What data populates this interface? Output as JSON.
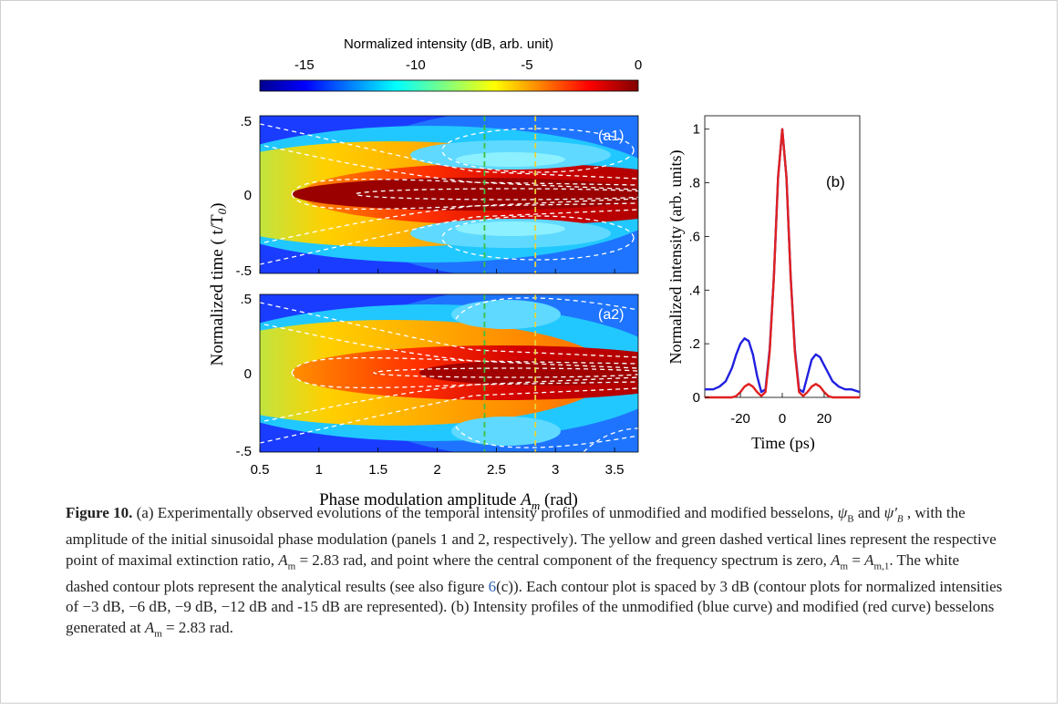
{
  "colorbar": {
    "title": "Normalized intensity (dB, arb. unit)",
    "ticks": [
      "-15",
      "-10",
      "-5",
      "0"
    ],
    "tick_values": [
      -15,
      -10,
      -5,
      0
    ],
    "range": [
      -17,
      0
    ]
  },
  "panel_a": {
    "ylabel": "Normalized time ( t/T",
    "ylabel_sub": "0",
    "ylabel_close": ")",
    "xlabel": "Phase modulation amplitude",
    "xlabel_var": "A",
    "xlabel_sub": "m",
    "xlabel_unit": "(rad)",
    "x_ticks": [
      "0.5",
      "1",
      "1.5",
      "2",
      "2.5",
      "3",
      "3.5"
    ],
    "y_ticks_a1": [
      ".5",
      "0",
      "-.5"
    ],
    "y_ticks_a2": [
      ".5",
      "0",
      "-.5"
    ],
    "label_a1": "(a1)",
    "label_a2": "(a2)",
    "green_line_x": 2.4,
    "yellow_line_x": 2.83
  },
  "panel_b": {
    "label": "(b)",
    "ylabel": "Normalized intensity (arb. units)",
    "xlabel": "Time (ps)",
    "x_ticks": [
      "-20",
      "0",
      "20"
    ],
    "y_ticks": [
      "0",
      ".2",
      ".4",
      ".6",
      ".8",
      "1"
    ]
  },
  "chart_data": [
    {
      "type": "heatmap",
      "panel": "a1",
      "x_range": [
        0.5,
        3.7
      ],
      "y_range": [
        -0.5,
        0.5
      ],
      "value_range_dB": [
        -17,
        0
      ],
      "contour_levels_dB": [
        -3,
        -6,
        -9,
        -12,
        -15
      ],
      "markers": [
        {
          "x": 2.4,
          "color": "#3fbf3f"
        },
        {
          "x": 2.83,
          "color": "#e8d23a"
        }
      ]
    },
    {
      "type": "heatmap",
      "panel": "a2",
      "x_range": [
        0.5,
        3.7
      ],
      "y_range": [
        -0.5,
        0.5
      ],
      "value_range_dB": [
        -17,
        0
      ],
      "contour_levels_dB": [
        -3,
        -6,
        -9,
        -12,
        -15
      ],
      "markers": [
        {
          "x": 2.4,
          "color": "#3fbf3f"
        },
        {
          "x": 2.83,
          "color": "#e8d23a"
        }
      ]
    },
    {
      "type": "line",
      "panel": "b",
      "xlim": [
        -37,
        37
      ],
      "ylim": [
        0,
        1.05
      ],
      "series": [
        {
          "color": "#2020e0",
          "x": [
            -37,
            -33,
            -30,
            -27,
            -24,
            -22,
            -20,
            -18,
            -16,
            -14,
            -12,
            -10,
            -8,
            -6,
            -4,
            -2,
            0,
            2,
            4,
            6,
            8,
            10,
            12,
            14,
            16,
            18,
            20,
            22,
            24,
            27,
            30,
            33,
            37
          ],
          "y": [
            0.03,
            0.03,
            0.04,
            0.06,
            0.11,
            0.16,
            0.2,
            0.22,
            0.21,
            0.16,
            0.08,
            0.02,
            0.03,
            0.18,
            0.45,
            0.82,
            1.0,
            0.82,
            0.45,
            0.18,
            0.03,
            0.02,
            0.08,
            0.14,
            0.16,
            0.15,
            0.12,
            0.09,
            0.06,
            0.04,
            0.03,
            0.03,
            0.02
          ]
        },
        {
          "color": "#e02020",
          "x": [
            -37,
            -30,
            -24,
            -22,
            -20,
            -18,
            -16,
            -14,
            -12,
            -10,
            -8,
            -6,
            -4,
            -2,
            0,
            2,
            4,
            6,
            8,
            10,
            12,
            14,
            16,
            18,
            20,
            22,
            24,
            30,
            37
          ],
          "y": [
            0,
            0,
            0,
            0.005,
            0.02,
            0.04,
            0.05,
            0.04,
            0.02,
            0.005,
            0.02,
            0.17,
            0.45,
            0.82,
            1.0,
            0.82,
            0.45,
            0.17,
            0.02,
            0.005,
            0.02,
            0.04,
            0.05,
            0.04,
            0.02,
            0.005,
            0,
            0,
            0
          ]
        }
      ]
    }
  ],
  "caption": {
    "label": "Figure 10.",
    "p1": " (a) Experimentally observed evolutions of the temporal intensity profiles of unmodified and modified besselons, ",
    "psiB": "ψ",
    "psiB_sub": "B",
    "and": " and ",
    "psiBp": "ψ′",
    "psiBp_sub": "B",
    "p2": " , with the amplitude of the initial sinusoidal phase modulation (panels 1 and 2, respectively). The yellow and green dashed vertical lines represent the respective point of maximal extinction ratio, ",
    "am1": "A",
    "am1_sub": "m",
    "eq1": " = 2.83 rad, and point where the central component of the frequency spectrum is zero, ",
    "am2": "A",
    "am2_sub": "m",
    "eq2": " = ",
    "am3": "A",
    "am3_sub": "m,1",
    "p3": ". The white dashed contour plots represent the analytical results (see also figure ",
    "fig_ref": "6",
    "p4": "(c)). Each contour plot is spaced by 3 dB (contour plots for normalized intensities of −3 dB, −6 dB, −9 dB, −12 dB and -15 dB are represented). (b) Intensity profiles of the unmodified (blue curve) and modified (red curve) besselons generated at ",
    "am4": "A",
    "am4_sub": "m",
    "eq4": " = 2.83 rad."
  }
}
